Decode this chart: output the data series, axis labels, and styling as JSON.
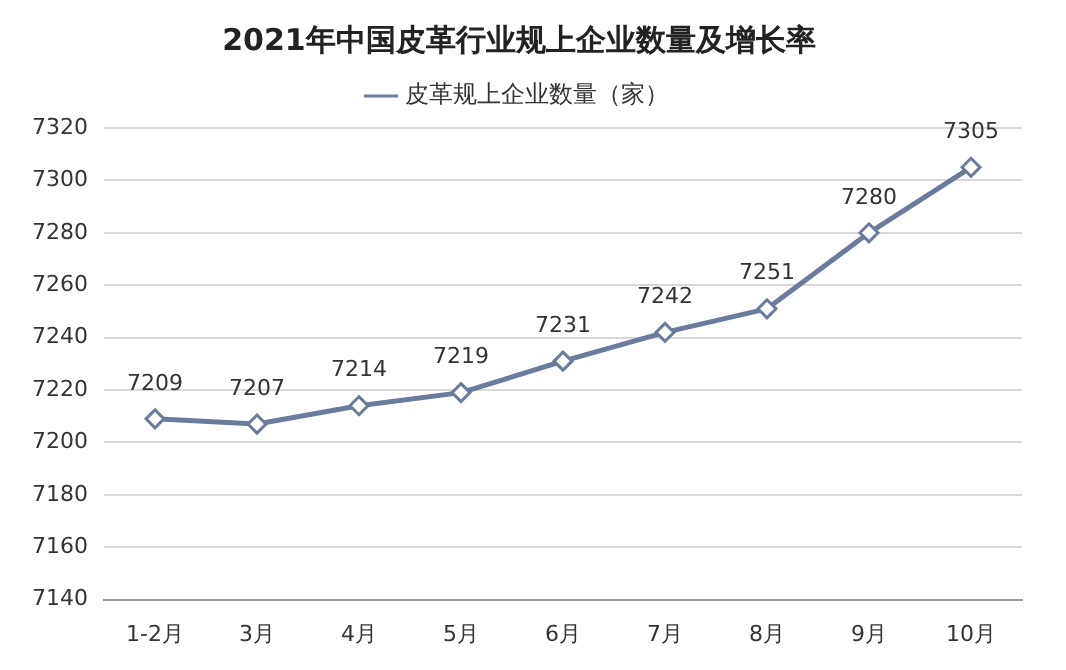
{
  "chart_data": {
    "type": "line",
    "title": "2021年中国皮革行业规上企业数量及增长率",
    "categories": [
      "1-2月",
      "3月",
      "4月",
      "5月",
      "6月",
      "7月",
      "8月",
      "9月",
      "10月"
    ],
    "series": [
      {
        "name": "皮革规上企业数量（家）",
        "color": "#6b7b9c",
        "values": [
          7209,
          7207,
          7214,
          7219,
          7231,
          7242,
          7251,
          7280,
          7305
        ]
      }
    ],
    "ylim": [
      7140,
      7320
    ],
    "yticks": [
      7140,
      7160,
      7180,
      7200,
      7220,
      7240,
      7260,
      7280,
      7300,
      7320
    ],
    "grid": "y",
    "legend": "top",
    "marker": "diamond",
    "line_style": "solid",
    "data_labels": true
  }
}
